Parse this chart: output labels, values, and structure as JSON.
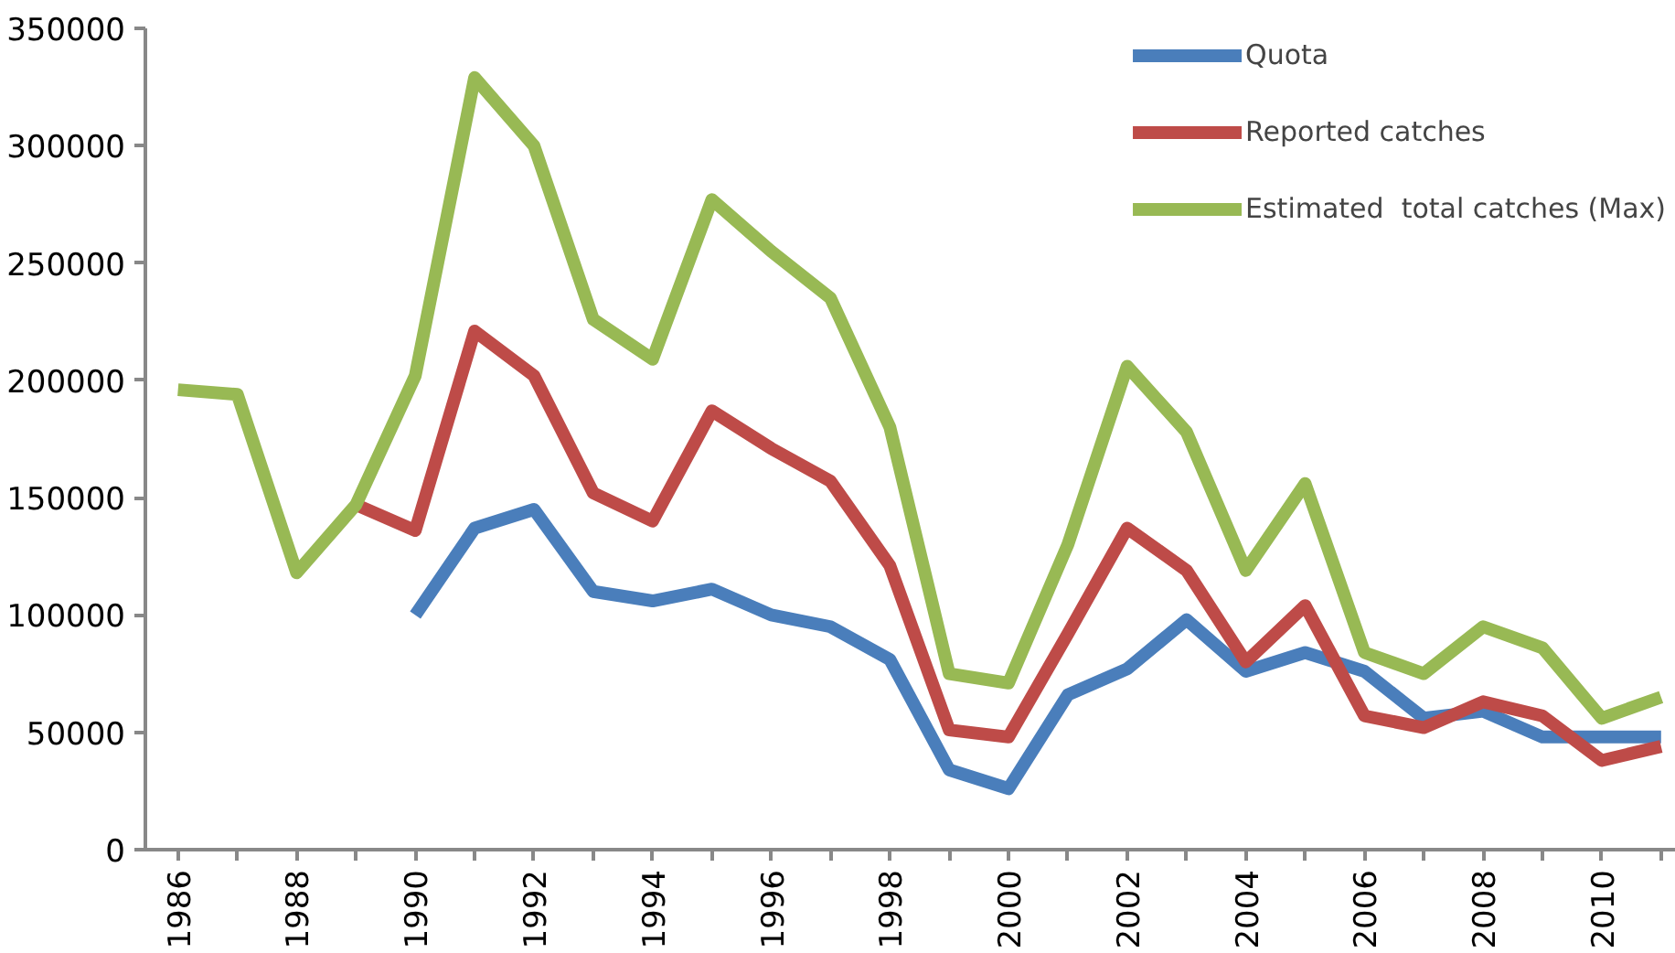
{
  "chart_data": {
    "type": "line",
    "categories": [
      "1986",
      null,
      "1988",
      null,
      "1990",
      null,
      "1992",
      null,
      "1994",
      null,
      "1996",
      null,
      "1998",
      null,
      "2000",
      null,
      "2002",
      null,
      "2004",
      null,
      "2006",
      null,
      "2008",
      null,
      "2010",
      null
    ],
    "series": [
      {
        "name": "Quota",
        "color": "#4a7ebb",
        "values": [
          null,
          null,
          null,
          null,
          100000,
          137000,
          145000,
          110000,
          106000,
          111000,
          100000,
          95000,
          81000,
          34000,
          26000,
          66000,
          77000,
          98000,
          76000,
          84000,
          76000,
          56000,
          59000,
          48000,
          48000,
          48000
        ]
      },
      {
        "name": "Reported catches",
        "color": "#be4b48",
        "values": [
          null,
          null,
          null,
          147000,
          136000,
          221000,
          202000,
          152000,
          140000,
          187000,
          171000,
          157000,
          121000,
          51000,
          48000,
          92000,
          137000,
          119000,
          80000,
          104000,
          57000,
          52000,
          63000,
          57000,
          38000,
          44000
        ]
      },
      {
        "name": "Estimated  total catches (Max)",
        "color": "#98b954",
        "values": [
          196000,
          194000,
          118000,
          147000,
          202000,
          329000,
          300000,
          226000,
          209000,
          277000,
          255000,
          235000,
          180000,
          75000,
          71000,
          130000,
          206000,
          178000,
          119000,
          156000,
          84000,
          75000,
          95000,
          86000,
          56000,
          65000
        ]
      }
    ],
    "ylim": [
      0,
      350000
    ],
    "yticks": [
      0,
      50000,
      100000,
      150000,
      200000,
      250000,
      300000,
      350000
    ],
    "grid": false,
    "legend": "top right",
    "line_style": "solid",
    "marker": "none"
  }
}
